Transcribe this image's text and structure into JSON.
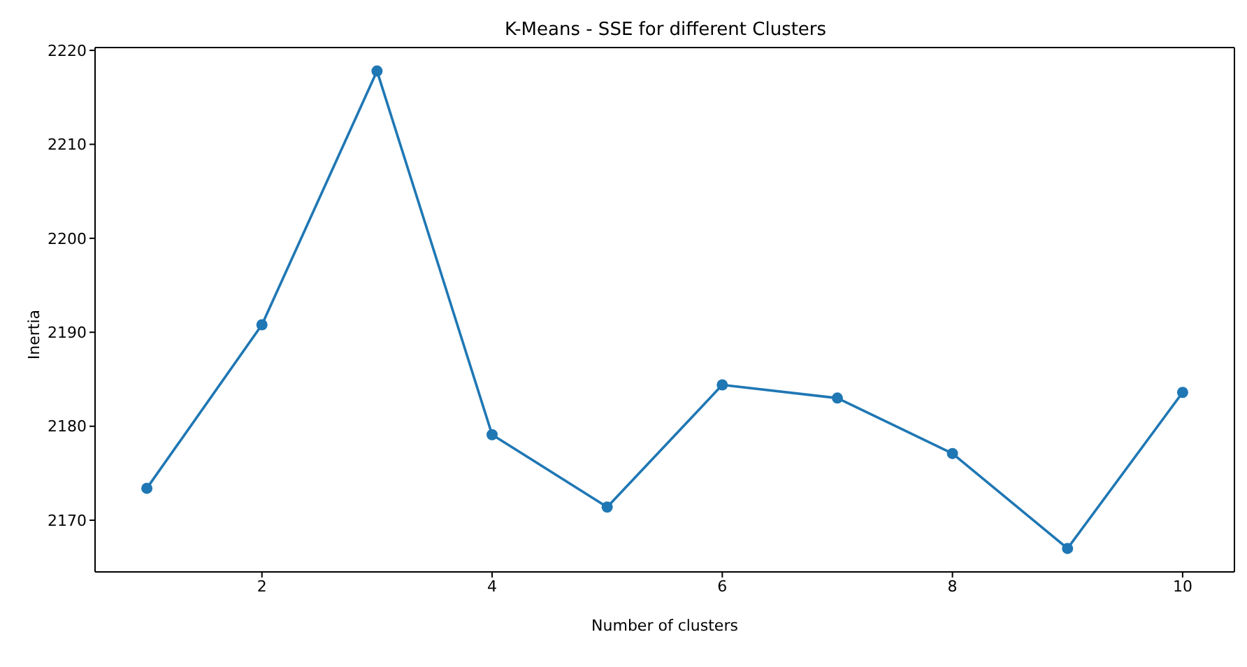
{
  "chart_data": {
    "type": "line",
    "title": "K-Means - SSE for different Clusters",
    "xlabel": "Number of clusters",
    "ylabel": "Inertia",
    "x": [
      1,
      2,
      3,
      4,
      5,
      6,
      7,
      8,
      9,
      10
    ],
    "series": [
      {
        "color": "#1f77b4",
        "values": [
          2173.4,
          2190.8,
          2217.8,
          2179.1,
          2171.4,
          2184.4,
          2183.0,
          2177.1,
          2167.0,
          2183.6
        ]
      }
    ],
    "xlim": [
      0.55,
      10.45
    ],
    "xticks": [
      2,
      4,
      6,
      8,
      10
    ],
    "ylim": [
      2164.5,
      2220.3
    ],
    "yticks": [
      2170,
      2180,
      2190,
      2200,
      2210,
      2220
    ],
    "marker": "circle",
    "line_style": "solid",
    "grid": false,
    "legend": false
  }
}
